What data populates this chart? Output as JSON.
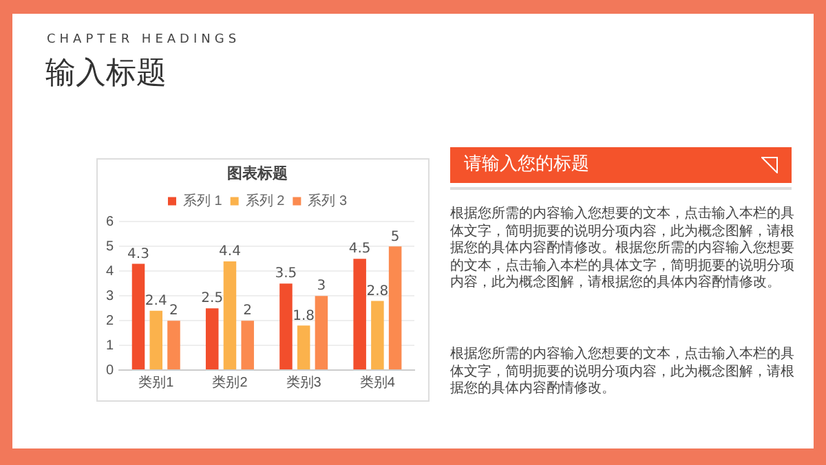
{
  "chart_data": {
    "type": "bar",
    "title": "图表标题",
    "categories": [
      "类别1",
      "类别2",
      "类别3",
      "类别4"
    ],
    "series": [
      {
        "name": "系列 1",
        "color": "#f24e2c",
        "values": [
          4.3,
          2.5,
          3.5,
          4.5
        ]
      },
      {
        "name": "系列 2",
        "color": "#fbb24c",
        "values": [
          2.4,
          4.4,
          1.8,
          2.8
        ]
      },
      {
        "name": "系列 3",
        "color": "#fb8a4f",
        "values": [
          2,
          2,
          3,
          5
        ]
      }
    ],
    "ylim": [
      0,
      6
    ],
    "yticks": [
      0,
      1,
      2,
      3,
      4,
      5,
      6
    ],
    "grid": "y",
    "legend": "top",
    "data_labels": true,
    "annotations": [
      "CHAPTER HEADINGS",
      "输入标题",
      "请输入您的标题",
      "根据您所需的内容输入您想要的文本，点击输入本栏的具体文字，简明扼要的说明分项内容，此为概念图解，请根据您的具体内容酌情修改。根据您所需的内容输入您想要的文本，点击输入本栏的具体文字，简明扼要的说明分项内容，此为概念图解，请根据您的具体内容酌情修改。",
      "根据您所需的内容输入您想要的文本，点击输入本栏的具体文字，简明扼要的说明分项内容，此为概念图解，请根据您的具体内容酌情修改。"
    ]
  }
}
